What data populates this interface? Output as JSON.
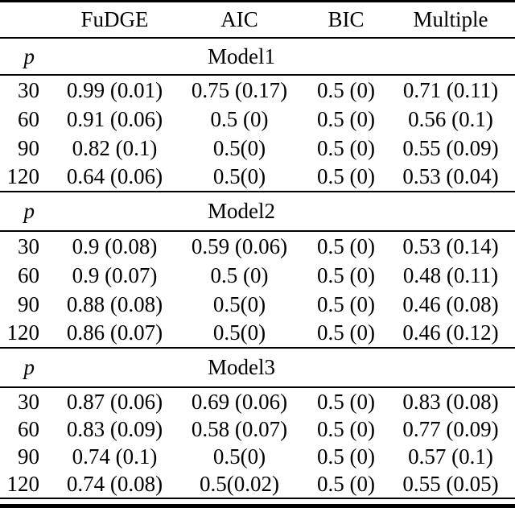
{
  "colors": {
    "background": "#ffffff",
    "text": "#000000",
    "rule": "#000000"
  },
  "table": {
    "column_headers": [
      "FuDGE",
      "AIC",
      "BIC",
      "Multiple"
    ],
    "row_header": "p",
    "sections": [
      {
        "title": "Model1",
        "rows": [
          {
            "p": "30",
            "fudge": "0.99 (0.01)",
            "aic": "0.75 (0.17)",
            "bic": "0.5 (0)",
            "multiple": "0.71 (0.11)"
          },
          {
            "p": "60",
            "fudge": "0.91 (0.06)",
            "aic": "0.5 (0)",
            "bic": "0.5 (0)",
            "multiple": "0.56 (0.1)"
          },
          {
            "p": "90",
            "fudge": "0.82 (0.1)",
            "aic": "0.5(0)",
            "bic": "0.5 (0)",
            "multiple": "0.55 (0.09)"
          },
          {
            "p": "120",
            "fudge": "0.64 (0.06)",
            "aic": "0.5(0)",
            "bic": "0.5 (0)",
            "multiple": "0.53 (0.04)"
          }
        ]
      },
      {
        "title": "Model2",
        "rows": [
          {
            "p": "30",
            "fudge": "0.9 (0.08)",
            "aic": "0.59 (0.06)",
            "bic": "0.5 (0)",
            "multiple": "0.53 (0.14)"
          },
          {
            "p": "60",
            "fudge": "0.9 (0.07)",
            "aic": "0.5 (0)",
            "bic": "0.5 (0)",
            "multiple": "0.48 (0.11)"
          },
          {
            "p": "90",
            "fudge": "0.88 (0.08)",
            "aic": "0.5(0)",
            "bic": "0.5 (0)",
            "multiple": "0.46 (0.08)"
          },
          {
            "p": "120",
            "fudge": "0.86 (0.07)",
            "aic": "0.5(0)",
            "bic": "0.5 (0)",
            "multiple": "0.46 (0.12)"
          }
        ]
      },
      {
        "title": "Model3",
        "rows": [
          {
            "p": "30",
            "fudge": "0.87 (0.06)",
            "aic": "0.69 (0.06)",
            "bic": "0.5 (0)",
            "multiple": "0.83 (0.08)"
          },
          {
            "p": "60",
            "fudge": "0.83 (0.09)",
            "aic": "0.58 (0.07)",
            "bic": "0.5 (0)",
            "multiple": "0.77 (0.09)"
          },
          {
            "p": "90",
            "fudge": "0.74 (0.1)",
            "aic": "0.5(0)",
            "bic": "0.5 (0)",
            "multiple": "0.57 (0.1)"
          },
          {
            "p": "120",
            "fudge": "0.74 (0.08)",
            "aic": "0.5(0.02)",
            "bic": "0.5 (0)",
            "multiple": "0.55 (0.05)"
          }
        ]
      }
    ]
  }
}
